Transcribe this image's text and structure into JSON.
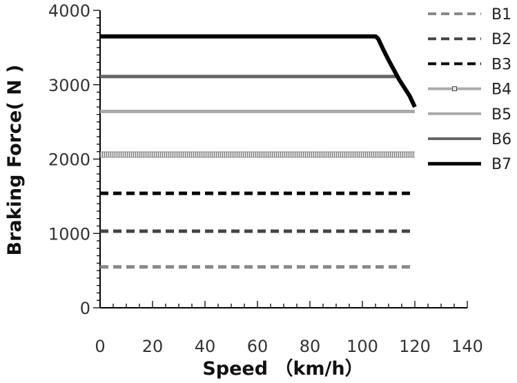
{
  "chart_data": {
    "type": "line",
    "title": "",
    "xlabel": "Speed （km/h）",
    "ylabel": "Braking Force( N )",
    "xlim": [
      0,
      140
    ],
    "ylim": [
      0,
      4000
    ],
    "x_ticks": [
      0,
      20,
      40,
      60,
      80,
      100,
      120,
      140
    ],
    "y_ticks": [
      0,
      1000,
      2000,
      3000,
      4000
    ],
    "grid": false,
    "legend": "right",
    "series": [
      {
        "name": "B1",
        "color": "#888888",
        "style": "dashed",
        "x": [
          0,
          120
        ],
        "y": [
          550,
          550
        ]
      },
      {
        "name": "B2",
        "color": "#444444",
        "style": "dashed",
        "x": [
          0,
          120
        ],
        "y": [
          1030,
          1030
        ]
      },
      {
        "name": "B3",
        "color": "#000000",
        "style": "dashed",
        "x": [
          0,
          120
        ],
        "y": [
          1540,
          1540
        ]
      },
      {
        "name": "B4",
        "color": "#aaaaaa",
        "style": "hatched",
        "x": [
          0,
          120
        ],
        "y": [
          2060,
          2060
        ]
      },
      {
        "name": "B5",
        "color": "#aaaaaa",
        "style": "solid",
        "x": [
          0,
          120
        ],
        "y": [
          2640,
          2640
        ]
      },
      {
        "name": "B6",
        "color": "#666666",
        "style": "solid",
        "x": [
          0,
          113
        ],
        "y": [
          3110,
          3110
        ]
      },
      {
        "name": "B7",
        "color": "#000000",
        "style": "solid",
        "x": [
          0,
          105,
          106,
          108,
          110,
          112,
          114,
          116,
          118,
          120
        ],
        "y": [
          3650,
          3650,
          3620,
          3470,
          3330,
          3200,
          3070,
          2960,
          2850,
          2700
        ]
      }
    ]
  }
}
